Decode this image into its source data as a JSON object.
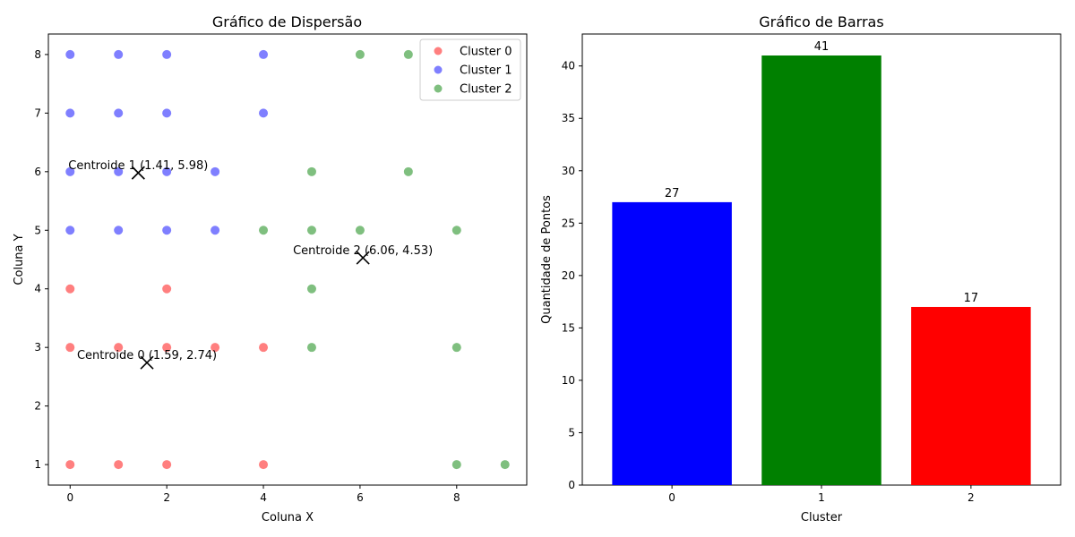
{
  "chart_data": [
    {
      "type": "scatter",
      "title": "Gráfico de Dispersão",
      "xlabel": "Coluna X",
      "ylabel": "Coluna Y",
      "xlim": [
        -0.45,
        9.45
      ],
      "ylim": [
        0.65,
        8.35
      ],
      "xticks": [
        0,
        2,
        4,
        6,
        8
      ],
      "yticks": [
        1,
        2,
        3,
        4,
        5,
        6,
        7,
        8
      ],
      "grid": false,
      "legend_position": "top-right",
      "series": [
        {
          "name": "Cluster 0",
          "color": "#ff0000",
          "points": [
            [
              0,
              1
            ],
            [
              1,
              1
            ],
            [
              2,
              1
            ],
            [
              4,
              1
            ],
            [
              0,
              3
            ],
            [
              1,
              3
            ],
            [
              2,
              3
            ],
            [
              3,
              3
            ],
            [
              4,
              3
            ],
            [
              0,
              4
            ],
            [
              2,
              4
            ]
          ]
        },
        {
          "name": "Cluster 1",
          "color": "#0000ff",
          "points": [
            [
              0,
              5
            ],
            [
              1,
              5
            ],
            [
              2,
              5
            ],
            [
              3,
              5
            ],
            [
              0,
              6
            ],
            [
              1,
              6
            ],
            [
              2,
              6
            ],
            [
              3,
              6
            ],
            [
              0,
              7
            ],
            [
              1,
              7
            ],
            [
              2,
              7
            ],
            [
              4,
              7
            ],
            [
              0,
              8
            ],
            [
              1,
              8
            ],
            [
              2,
              8
            ],
            [
              4,
              8
            ]
          ]
        },
        {
          "name": "Cluster 2",
          "color": "#008000",
          "points": [
            [
              8,
              1
            ],
            [
              9,
              1
            ],
            [
              5,
              3
            ],
            [
              8,
              3
            ],
            [
              5,
              4
            ],
            [
              4,
              5
            ],
            [
              5,
              5
            ],
            [
              6,
              5
            ],
            [
              8,
              5
            ],
            [
              5,
              6
            ],
            [
              7,
              6
            ],
            [
              6,
              8
            ],
            [
              7,
              8
            ]
          ]
        }
      ],
      "centroids": [
        {
          "x": 1.59,
          "y": 2.74,
          "label": "Centroide 0 (1.59, 2.74)"
        },
        {
          "x": 1.41,
          "y": 5.98,
          "label": "Centroide 1 (1.41, 5.98)"
        },
        {
          "x": 6.06,
          "y": 4.53,
          "label": "Centroide 2 (6.06, 4.53)"
        }
      ]
    },
    {
      "type": "bar",
      "title": "Gráfico de Barras",
      "xlabel": "Cluster",
      "ylabel": "Quantidade de Pontos",
      "categories": [
        "0",
        "1",
        "2"
      ],
      "values": [
        27,
        41,
        17
      ],
      "colors": [
        "#0000ff",
        "#008000",
        "#ff0000"
      ],
      "ylim": [
        0,
        43.05
      ],
      "yticks": [
        0,
        5,
        10,
        15,
        20,
        25,
        30,
        35,
        40
      ],
      "grid": false
    }
  ]
}
